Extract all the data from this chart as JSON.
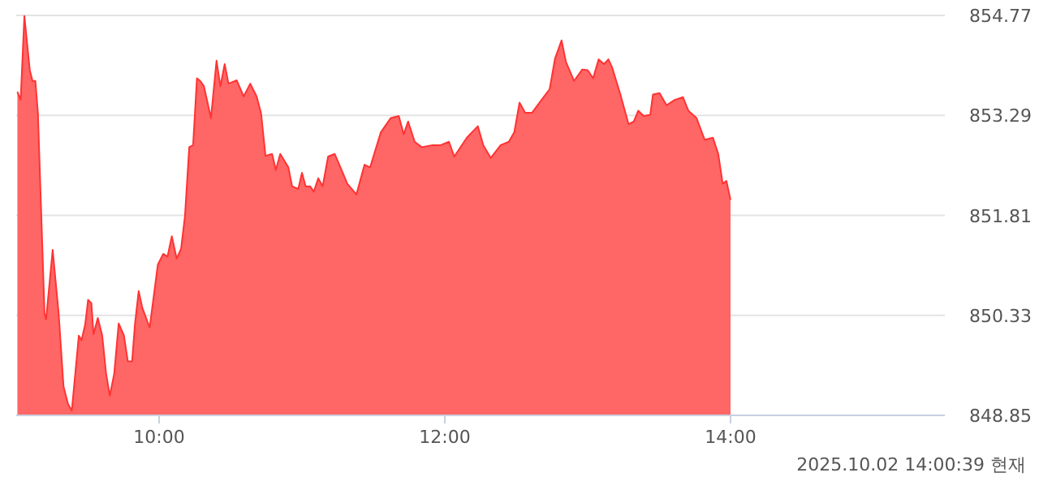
{
  "chart_data": {
    "type": "area",
    "x": [
      9.008,
      9.031,
      9.057,
      9.095,
      9.114,
      9.134,
      9.152,
      9.198,
      9.209,
      9.255,
      9.297,
      9.331,
      9.362,
      9.389,
      9.438,
      9.457,
      9.483,
      9.503,
      9.526,
      9.541,
      9.571,
      9.602,
      9.629,
      9.655,
      9.686,
      9.717,
      9.754,
      9.781,
      9.811,
      9.831,
      9.857,
      9.883,
      9.934,
      9.991,
      10.029,
      10.059,
      10.089,
      10.123,
      10.154,
      10.181,
      10.211,
      10.238,
      10.265,
      10.288,
      10.314,
      10.363,
      10.402,
      10.429,
      10.459,
      10.486,
      10.543,
      10.592,
      10.638,
      10.683,
      10.714,
      10.745,
      10.791,
      10.817,
      10.848,
      10.905,
      10.931,
      10.974,
      11.0,
      11.026,
      11.057,
      11.083,
      11.114,
      11.145,
      11.183,
      11.229,
      11.286,
      11.317,
      11.381,
      11.438,
      11.477,
      11.552,
      11.621,
      11.678,
      11.712,
      11.743,
      11.789,
      11.838,
      11.914,
      11.971,
      12.029,
      12.066,
      12.154,
      12.231,
      12.269,
      12.322,
      12.391,
      12.448,
      12.486,
      12.523,
      12.562,
      12.611,
      12.677,
      12.734,
      12.771,
      12.817,
      12.848,
      12.905,
      12.962,
      13.0,
      13.038,
      13.077,
      13.114,
      13.145,
      13.171,
      13.229,
      13.286,
      13.323,
      13.354,
      13.392,
      13.438,
      13.457,
      13.503,
      13.552,
      13.609,
      13.667,
      13.705,
      13.762,
      13.819,
      13.877,
      13.914,
      13.945,
      13.971,
      14.0
    ],
    "series": [
      {
        "color": "#ff6666",
        "values": [
          853.64,
          853.52,
          854.76,
          853.96,
          853.8,
          853.8,
          853.32,
          850.36,
          850.27,
          851.3,
          850.36,
          849.28,
          849.02,
          848.92,
          850.03,
          849.96,
          850.2,
          850.56,
          850.51,
          850.05,
          850.29,
          850.03,
          849.47,
          849.14,
          849.47,
          850.21,
          850.03,
          849.65,
          849.65,
          850.2,
          850.69,
          850.44,
          850.15,
          851.08,
          851.24,
          851.2,
          851.5,
          851.17,
          851.32,
          851.8,
          852.82,
          852.85,
          853.84,
          853.8,
          853.72,
          853.25,
          854.1,
          853.72,
          854.05,
          853.76,
          853.81,
          853.57,
          853.76,
          853.57,
          853.32,
          852.69,
          852.72,
          852.48,
          852.72,
          852.52,
          852.24,
          852.2,
          852.44,
          852.24,
          852.24,
          852.16,
          852.36,
          852.24,
          852.68,
          852.72,
          852.44,
          852.28,
          852.12,
          852.56,
          852.52,
          853.04,
          853.25,
          853.28,
          853.01,
          853.2,
          852.9,
          852.82,
          852.85,
          852.85,
          852.9,
          852.68,
          852.96,
          853.13,
          852.85,
          852.66,
          852.85,
          852.9,
          853.04,
          853.48,
          853.33,
          853.33,
          853.52,
          853.68,
          854.13,
          854.4,
          854.08,
          853.8,
          853.97,
          853.96,
          853.84,
          854.12,
          854.05,
          854.12,
          854.0,
          853.6,
          853.16,
          853.2,
          853.36,
          853.28,
          853.3,
          853.6,
          853.62,
          853.44,
          853.52,
          853.56,
          853.36,
          853.25,
          852.93,
          852.96,
          852.72,
          852.28,
          852.32,
          852.04
        ]
      }
    ],
    "xlim": [
      9,
      15.5
    ],
    "xticks": [
      {
        "value": 10,
        "label": "10:00"
      },
      {
        "value": 12,
        "label": "12:00"
      },
      {
        "value": 14,
        "label": "14:00"
      }
    ],
    "ylim": [
      848.85,
      854.77
    ],
    "yticks": [
      848.85,
      850.33,
      851.81,
      853.29,
      854.77
    ],
    "grid": "y",
    "annotations": [
      "2025.10.02 14:00:39 현재"
    ]
  }
}
